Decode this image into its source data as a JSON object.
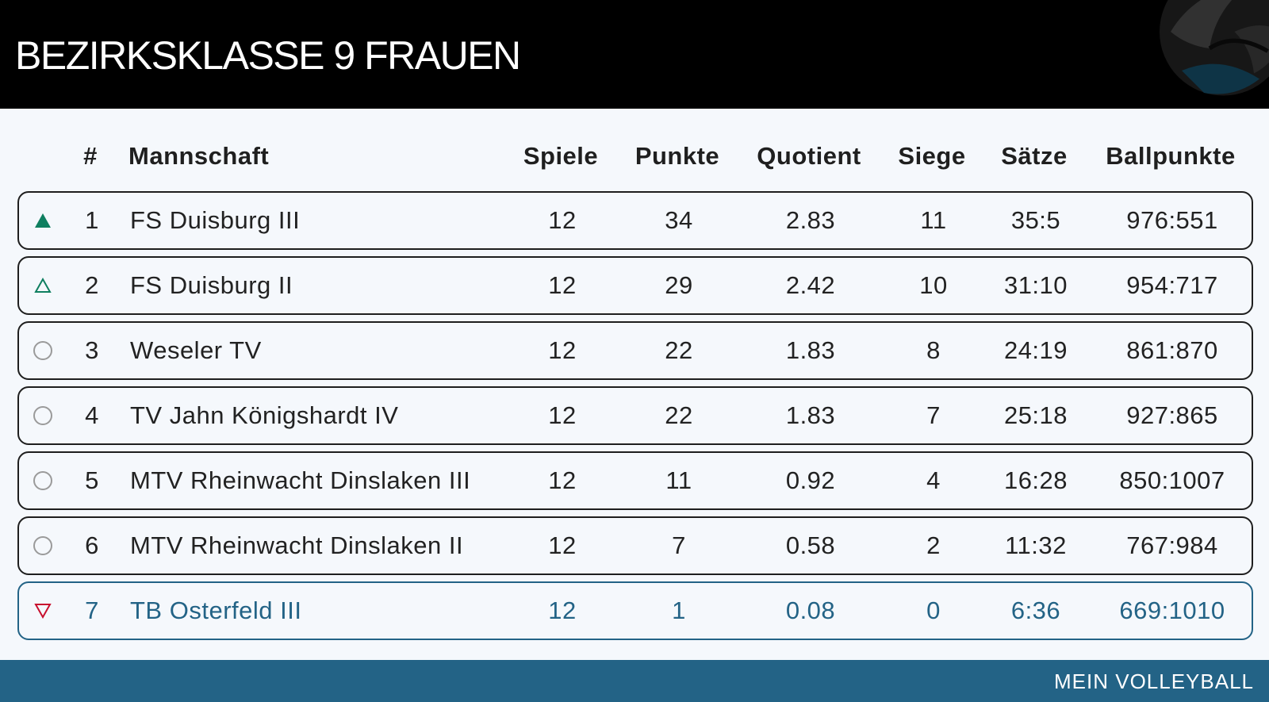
{
  "header": {
    "title": "BEZIRKSKLASSE 9 FRAUEN"
  },
  "table": {
    "columns": {
      "rank": "#",
      "team": "Mannschaft",
      "games": "Spiele",
      "points": "Punkte",
      "quotient": "Quotient",
      "wins": "Siege",
      "sets": "Sätze",
      "ballpoints": "Ballpunkte"
    },
    "rows": [
      {
        "marker": "up-filled-icon",
        "rank": "1",
        "team": "FS Duisburg III",
        "games": "12",
        "points": "34",
        "quotient": "2.83",
        "wins": "11",
        "sets": "35:5",
        "ballpoints": "976:551"
      },
      {
        "marker": "up-outline-icon",
        "rank": "2",
        "team": "FS Duisburg II",
        "games": "12",
        "points": "29",
        "quotient": "2.42",
        "wins": "10",
        "sets": "31:10",
        "ballpoints": "954:717"
      },
      {
        "marker": "circle-icon",
        "rank": "3",
        "team": "Weseler TV",
        "games": "12",
        "points": "22",
        "quotient": "1.83",
        "wins": "8",
        "sets": "24:19",
        "ballpoints": "861:870"
      },
      {
        "marker": "circle-icon",
        "rank": "4",
        "team": "TV Jahn Königshardt IV",
        "games": "12",
        "points": "22",
        "quotient": "1.83",
        "wins": "7",
        "sets": "25:18",
        "ballpoints": "927:865"
      },
      {
        "marker": "circle-icon",
        "rank": "5",
        "team": "MTV Rheinwacht Dinslaken III",
        "games": "12",
        "points": "11",
        "quotient": "0.92",
        "wins": "4",
        "sets": "16:28",
        "ballpoints": "850:1007"
      },
      {
        "marker": "circle-icon",
        "rank": "6",
        "team": "MTV Rheinwacht Dinslaken II",
        "games": "12",
        "points": "7",
        "quotient": "0.58",
        "wins": "2",
        "sets": "11:32",
        "ballpoints": "767:984"
      },
      {
        "marker": "down-outline-icon",
        "rank": "7",
        "team": "TB Osterfeld III",
        "games": "12",
        "points": "1",
        "quotient": "0.08",
        "wins": "0",
        "sets": "6:36",
        "ballpoints": "669:1010"
      }
    ]
  },
  "colors": {
    "promotion": "#0f7f60",
    "relegation_marker": "#c8102e",
    "highlight": "#236386",
    "neutral": "#9a9a9a"
  },
  "footer": {
    "brand": "MEIN VOLLEYBALL"
  }
}
